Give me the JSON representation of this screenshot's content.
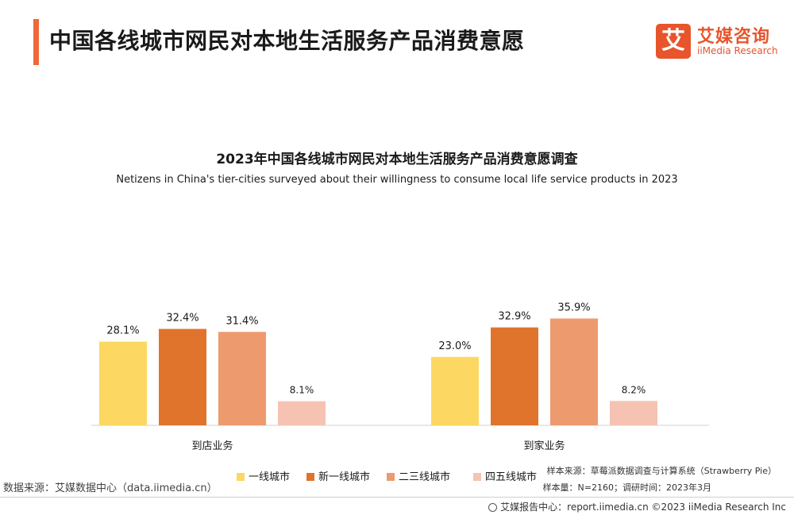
{
  "page": {
    "title": "中国各线城市网民对本地生活服务产品消费意愿"
  },
  "logo": {
    "mark": "艾",
    "name_cn": "艾媒咨询",
    "name_en": "iiMedia Research"
  },
  "chart_data": {
    "type": "bar",
    "title": "2023年中国各线城市网民对本地生活服务产品消费意愿调查",
    "subtitle": "Netizens in China's tier-cities surveyed about their willingness to consume local life service products  in 2023",
    "categories": [
      "到店业务",
      "到家业务"
    ],
    "series": [
      {
        "name": "一线城市",
        "color": "#fcd862",
        "values": [
          28.1,
          23.0
        ],
        "labels": [
          "28.1%",
          "23.0%"
        ]
      },
      {
        "name": "新一线城市",
        "color": "#e0742c",
        "values": [
          32.4,
          32.9
        ],
        "labels": [
          "32.4%",
          "32.9%"
        ]
      },
      {
        "name": "二三线城市",
        "color": "#ee9a6f",
        "values": [
          31.4,
          35.9
        ],
        "labels": [
          "31.4%",
          "35.9%"
        ]
      },
      {
        "name": "四五线城市",
        "color": "#f6c3b3",
        "values": [
          8.1,
          8.2
        ],
        "labels": [
          "8.1%",
          "8.2%"
        ]
      }
    ],
    "ylim": [
      0,
      38
    ],
    "grid": false,
    "legend_position": "bottom"
  },
  "notes": {
    "data_source": "数据来源：艾媒数据中心（data.iimedia.cn）",
    "sample_source": "样本来源：草莓派数据调查与计算系统（Strawberry Pie）",
    "sample_size": "样本量：N=2160；调研时间：2023年3月"
  },
  "footer": {
    "text": "艾媒报告中心：report.iimedia.cn  ©2023  iiMedia Research  Inc"
  }
}
